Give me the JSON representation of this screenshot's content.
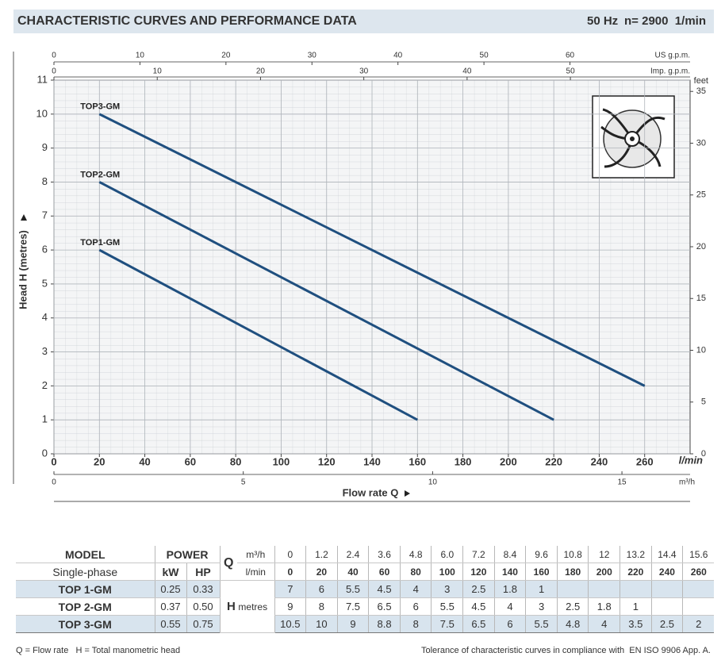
{
  "header": {
    "title": "CHARACTERISTIC CURVES AND PERFORMANCE DATA",
    "frequency": "50 Hz",
    "speed": "n= 2900  1/min"
  },
  "chart_data": {
    "type": "line",
    "xlabel": "Flow rate Q",
    "ylabel": "Head H (metres)",
    "xunit": "l/min",
    "xlim": [
      0,
      280
    ],
    "xticks": [
      0,
      20,
      40,
      60,
      80,
      100,
      120,
      140,
      160,
      180,
      200,
      220,
      240,
      260
    ],
    "ylim": [
      0,
      11
    ],
    "yticks": [
      0,
      1,
      2,
      3,
      4,
      5,
      6,
      7,
      8,
      9,
      10,
      11
    ],
    "y2label": "feet",
    "y2lim": [
      0,
      36.09
    ],
    "y2ticks": [
      0,
      5,
      10,
      15,
      20,
      25,
      30,
      35
    ],
    "top_axes": [
      {
        "label": "US g.p.m.",
        "lim": [
          0,
          73.97
        ],
        "ticks": [
          0,
          10,
          20,
          30,
          40,
          50,
          60
        ]
      },
      {
        "label": "Imp. g.p.m.",
        "lim": [
          0,
          61.59
        ],
        "ticks": [
          0,
          10,
          20,
          30,
          40,
          50
        ]
      }
    ],
    "bottom_axis2": {
      "label": "m³/h",
      "lim": [
        0,
        16.8
      ],
      "ticks": [
        0,
        5,
        10,
        15
      ]
    },
    "grid": true,
    "series": [
      {
        "name": "TOP1-GM",
        "color": "#1f4f7f",
        "x": [
          20,
          160
        ],
        "values": [
          6,
          1
        ]
      },
      {
        "name": "TOP2-GM",
        "color": "#1f4f7f",
        "x": [
          20,
          220
        ],
        "values": [
          8,
          1
        ]
      },
      {
        "name": "TOP3-GM",
        "color": "#1f4f7f",
        "x": [
          20,
          260
        ],
        "values": [
          10,
          2
        ]
      }
    ]
  },
  "table": {
    "header": {
      "model": "MODEL",
      "model_sub": "Single-phase",
      "power": "POWER",
      "kw": "kW",
      "hp": "HP",
      "q": "Q",
      "q_unit1": "m³/h",
      "q_unit2": "l/min",
      "h": "H",
      "h_unit": "metres"
    },
    "flow_m3h": [
      "0",
      "1.2",
      "2.4",
      "3.6",
      "4.8",
      "6.0",
      "7.2",
      "8.4",
      "9.6",
      "10.8",
      "12",
      "13.2",
      "14.4",
      "15.6"
    ],
    "flow_lmin": [
      "0",
      "20",
      "40",
      "60",
      "80",
      "100",
      "120",
      "140",
      "160",
      "180",
      "200",
      "220",
      "240",
      "260"
    ],
    "rows": [
      {
        "model": "TOP 1-GM",
        "kw": "0.25",
        "hp": "0.33",
        "head": [
          "7",
          "6",
          "5.5",
          "4.5",
          "4",
          "3",
          "2.5",
          "1.8",
          "1"
        ]
      },
      {
        "model": "TOP 2-GM",
        "kw": "0.37",
        "hp": "0.50",
        "head": [
          "9",
          "8",
          "7.5",
          "6.5",
          "6",
          "5.5",
          "4.5",
          "4",
          "3",
          "2.5",
          "1.8",
          "1"
        ]
      },
      {
        "model": "TOP 3-GM",
        "kw": "0.55",
        "hp": "0.75",
        "head": [
          "10.5",
          "10",
          "9",
          "8.8",
          "8",
          "7.5",
          "6.5",
          "6",
          "5.5",
          "4.8",
          "4",
          "3.5",
          "2.5",
          "2"
        ]
      }
    ]
  },
  "footer": {
    "q_note": "Q = Flow rate",
    "h_note": "H = Total manometric head",
    "tolerance": "Tolerance of characteristic curves in compliance with  EN ISO 9906 App. A."
  }
}
